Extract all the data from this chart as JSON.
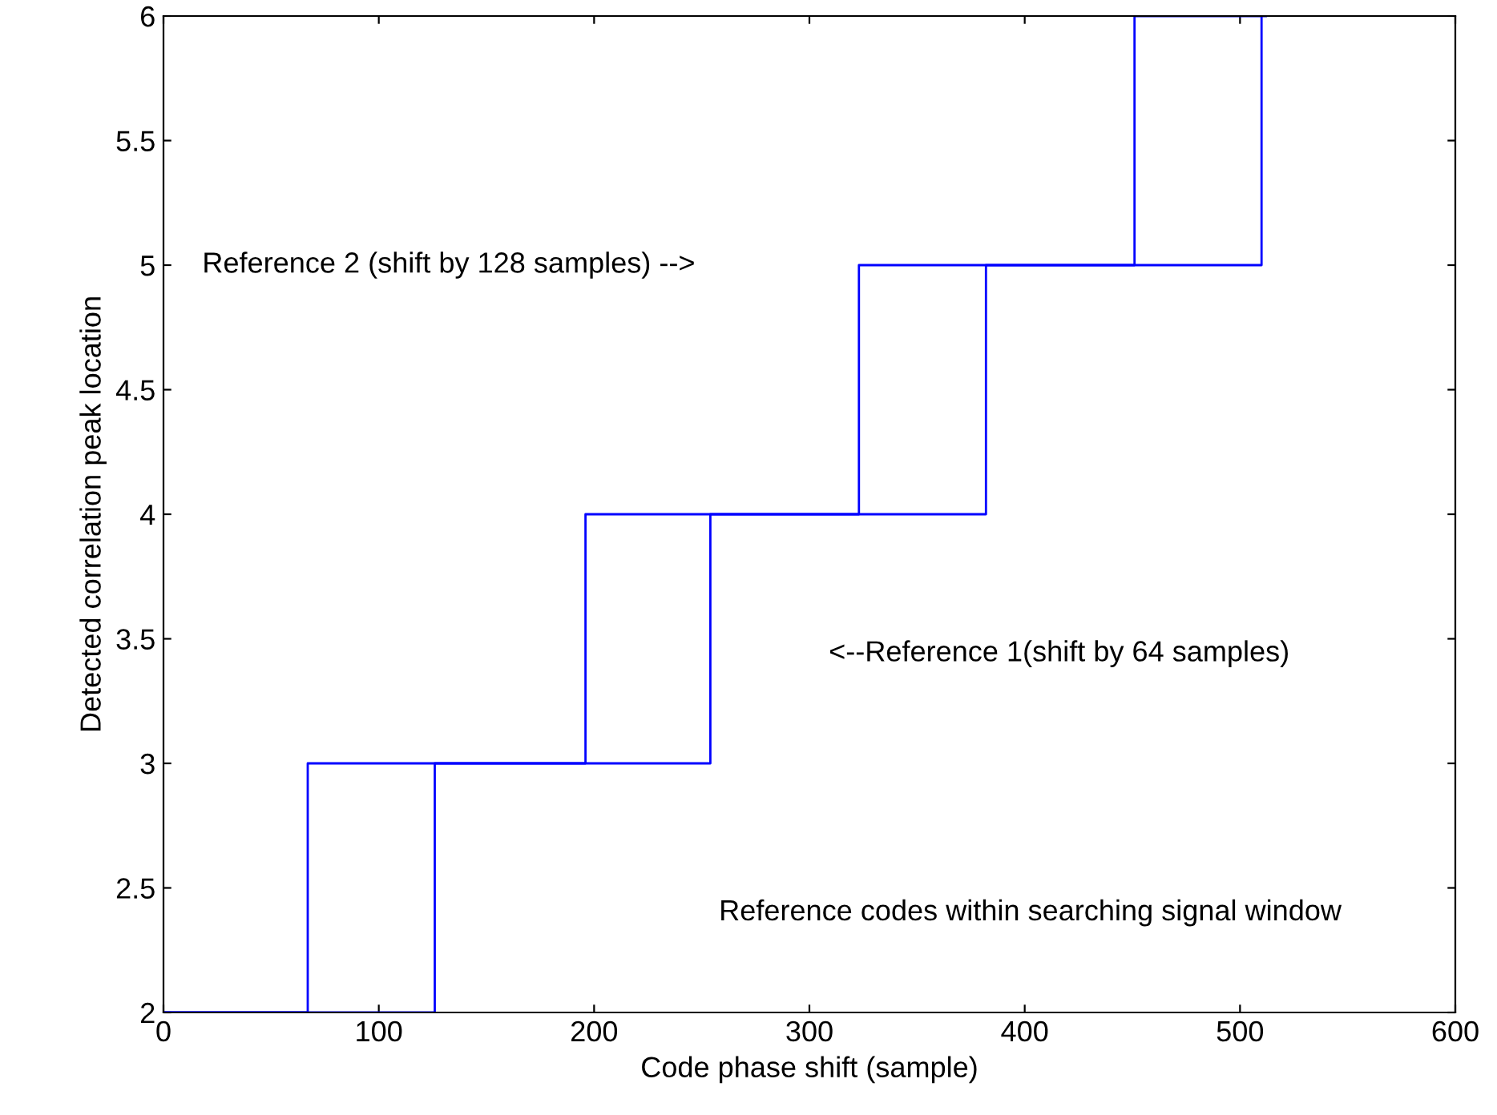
{
  "chart_data": {
    "type": "step",
    "xlabel": "Code phase shift (sample)",
    "ylabel": "Detected correlation peak location",
    "series": [
      {
        "color": "#0000ff",
        "x": [
          0,
          67,
          196,
          323,
          451,
          512
        ],
        "values": [
          2,
          3,
          4,
          5,
          6,
          6
        ]
      },
      {
        "color": "#0000ff",
        "x": [
          0,
          126,
          254,
          382,
          510
        ],
        "values": [
          2,
          3,
          4,
          5,
          6
        ]
      }
    ],
    "xlim": [
      0,
      600
    ],
    "ylim": [
      2,
      6
    ],
    "xticks": [
      0,
      100,
      200,
      300,
      400,
      500,
      600
    ],
    "yticks": [
      2,
      2.5,
      3,
      3.5,
      4,
      4.5,
      5,
      5.5,
      6
    ],
    "annotations": [
      "Reference 2 (shift by 128 samples) -->",
      "<--Reference 1(shift by 64 samples)",
      "Reference codes within searching signal window"
    ],
    "grid": false,
    "line_style": "solid"
  }
}
